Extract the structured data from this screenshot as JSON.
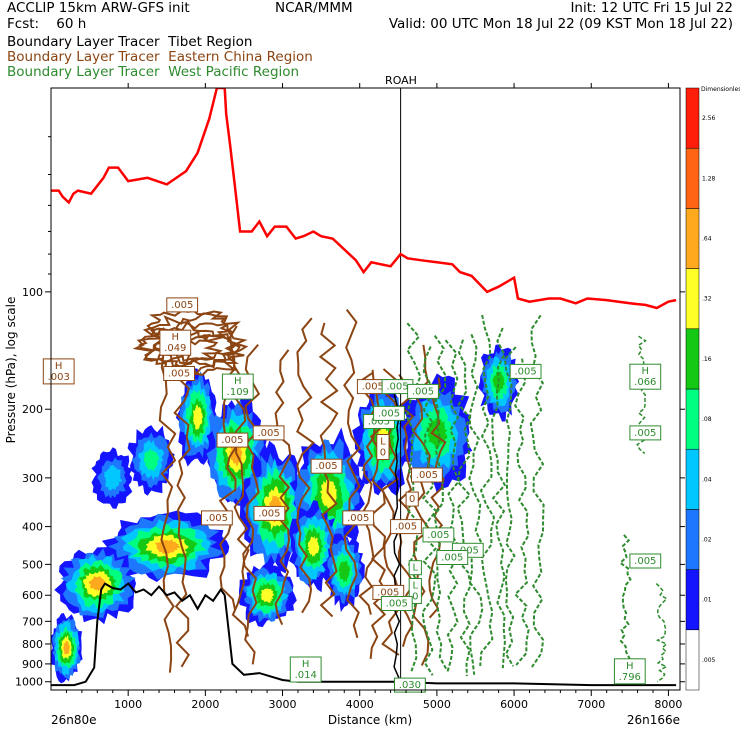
{
  "header": {
    "line1_left": "ACCLIP 15km ARW-GFS init",
    "line1_center": "NCAR/MMM",
    "line1_right": "Init: 12 UTC Fri 15 Jul 22",
    "line2_left": "Fcst:    60 h",
    "line2_right": "Valid: 00 UTC Mon 18 Jul 22 (09 KST Mon 18 Jul 22)",
    "tracer_tibet": "Boundary Layer Tracer  Tibet Region",
    "tracer_china": "Boundary Layer Tracer  Eastern China Region",
    "tracer_wpac": "Boundary Layer Tracer  West Pacific Region"
  },
  "colors": {
    "tibet": "#000000",
    "china": "#8b4513",
    "wpac": "#2e8b2e",
    "tropopause": "#ff0000",
    "terrain": "#000000"
  },
  "chart_data": {
    "type": "cross-section",
    "xlabel": "Distance (km)",
    "ylabel": "Pressure (hPa), log scale",
    "x_left_label": "26n80e",
    "x_right_label": "26n166e",
    "xlim": [
      0,
      8150
    ],
    "ylim": [
      1050,
      30
    ],
    "xticks": [
      "1000",
      "2000",
      "3000",
      "4000",
      "5000",
      "6000",
      "7000",
      "8000"
    ],
    "xtick_values": [
      1000,
      2000,
      3000,
      4000,
      5000,
      6000,
      7000,
      8000
    ],
    "yticks": [
      "100",
      "200",
      "300",
      "400",
      "500",
      "600",
      "700",
      "800",
      "900",
      "1000"
    ],
    "ytick_values": [
      100,
      200,
      300,
      400,
      500,
      600,
      700,
      800,
      900,
      1000
    ],
    "marker_label": "ROAH",
    "marker_distance": 4530,
    "colorbar": {
      "title": "Dimensionless",
      "labels": [
        ".005",
        ".01",
        ".02",
        ".04",
        ".08",
        ".16",
        ".32",
        ".64",
        "1.28",
        "2.56"
      ],
      "colors": [
        "#ffffff",
        "#1414ff",
        "#1e78ff",
        "#00c8ff",
        "#00ff80",
        "#14c814",
        "#ffff28",
        "#ffaa1e",
        "#ff6414",
        "#ff1e0a"
      ]
    },
    "tropopause": {
      "x": [
        0,
        100,
        150,
        230,
        290,
        350,
        520,
        680,
        750,
        870,
        1000,
        1250,
        1500,
        1750,
        1900,
        2050,
        2150,
        2250,
        2270,
        2320,
        2380,
        2450,
        2600,
        2700,
        2800,
        2900,
        3050,
        3170,
        3270,
        3400,
        3500,
        3650,
        3950,
        4050,
        4150,
        4400,
        4530,
        4620,
        4800,
        5000,
        5200,
        5300,
        5450,
        5650,
        5800,
        6000,
        6050,
        6200,
        6450,
        6600,
        6800,
        6950,
        7200,
        7500,
        7700,
        7850,
        8000,
        8100
      ],
      "y": [
        55,
        55,
        57,
        59,
        56,
        55,
        56,
        51,
        48,
        48,
        52,
        51,
        53,
        49,
        44,
        36,
        30,
        30,
        35,
        42,
        53,
        70,
        70,
        66,
        72,
        68,
        68,
        73,
        72,
        70,
        72,
        73,
        83,
        89,
        84,
        86,
        80,
        82,
        83,
        84,
        85,
        89,
        91,
        100,
        97,
        92,
        104,
        106,
        104,
        104,
        107,
        104,
        105,
        107,
        108,
        110,
        106,
        105
      ]
    },
    "terrain": {
      "x": [
        0,
        300,
        450,
        560,
        600,
        650,
        700,
        800,
        900,
        1000,
        1100,
        1200,
        1300,
        1400,
        1500,
        1600,
        1700,
        1800,
        1900,
        2000,
        2100,
        2200,
        2250,
        2350,
        2500,
        2700,
        3000,
        3200,
        3500,
        4000,
        4500,
        5000,
        6000,
        7000,
        8100
      ],
      "y": [
        1020,
        1020,
        1000,
        920,
        700,
        580,
        560,
        575,
        580,
        560,
        590,
        580,
        600,
        570,
        600,
        590,
        620,
        600,
        650,
        600,
        620,
        580,
        600,
        900,
        960,
        950,
        990,
        1000,
        1000,
        1000,
        1000,
        1010,
        1010,
        1020,
        1020
      ]
    },
    "labels_tibet": [
      {
        "text": "H\n.003",
        "x": 100,
        "y": 160
      },
      {
        "text": ".049",
        "x": 1610,
        "y": 138
      }
    ],
    "labels_china": [
      {
        "text": ".005",
        "x": 1700,
        "y": 108
      },
      {
        "text": "H\n.049",
        "x": 1610,
        "y": 135
      },
      {
        "text": ".005",
        "x": 1660,
        "y": 162
      },
      {
        "text": ".005",
        "x": 2350,
        "y": 240
      },
      {
        "text": ".005",
        "x": 2820,
        "y": 230
      },
      {
        "text": ".005",
        "x": 3570,
        "y": 280
      },
      {
        "text": ".005",
        "x": 2830,
        "y": 370
      },
      {
        "text": ".005",
        "x": 2150,
        "y": 380
      },
      {
        "text": ".005",
        "x": 4170,
        "y": 175
      },
      {
        "text": ".005",
        "x": 3980,
        "y": 380
      },
      {
        "text": ".005",
        "x": 4370,
        "y": 590
      },
      {
        "text": "L\n0",
        "x": 4300,
        "y": 250
      },
      {
        "text": ".005",
        "x": 4870,
        "y": 295
      },
      {
        "text": ".005",
        "x": 4600,
        "y": 400
      },
      {
        "text": "0",
        "x": 4680,
        "y": 340
      }
    ],
    "labels_wpac": [
      {
        "text": "H\n.109",
        "x": 2420,
        "y": 175
      },
      {
        "text": ".005",
        "x": 4490,
        "y": 175
      },
      {
        "text": ".005",
        "x": 4250,
        "y": 215
      },
      {
        "text": ".005",
        "x": 4380,
        "y": 205
      },
      {
        "text": ".005",
        "x": 4820,
        "y": 180
      },
      {
        "text": ".005",
        "x": 6150,
        "y": 160
      },
      {
        "text": ".005",
        "x": 5020,
        "y": 420
      },
      {
        "text": ".005",
        "x": 5400,
        "y": 460
      },
      {
        "text": ".005",
        "x": 5200,
        "y": 480
      },
      {
        "text": ".005",
        "x": 7700,
        "y": 490
      },
      {
        "text": "L",
        "x": 4720,
        "y": 510
      },
      {
        "text": "L\n0",
        "x": 4720,
        "y": 585
      },
      {
        "text": ".005",
        "x": 4480,
        "y": 630
      },
      {
        "text": "H\n.014",
        "x": 3300,
        "y": 930
      },
      {
        "text": ".030",
        "x": 4650,
        "y": 1020
      },
      {
        "text": "H\n.066",
        "x": 7700,
        "y": 165
      },
      {
        "text": ".005",
        "x": 7700,
        "y": 230
      },
      {
        "text": "H\n.796",
        "x": 7500,
        "y": 940
      }
    ]
  }
}
